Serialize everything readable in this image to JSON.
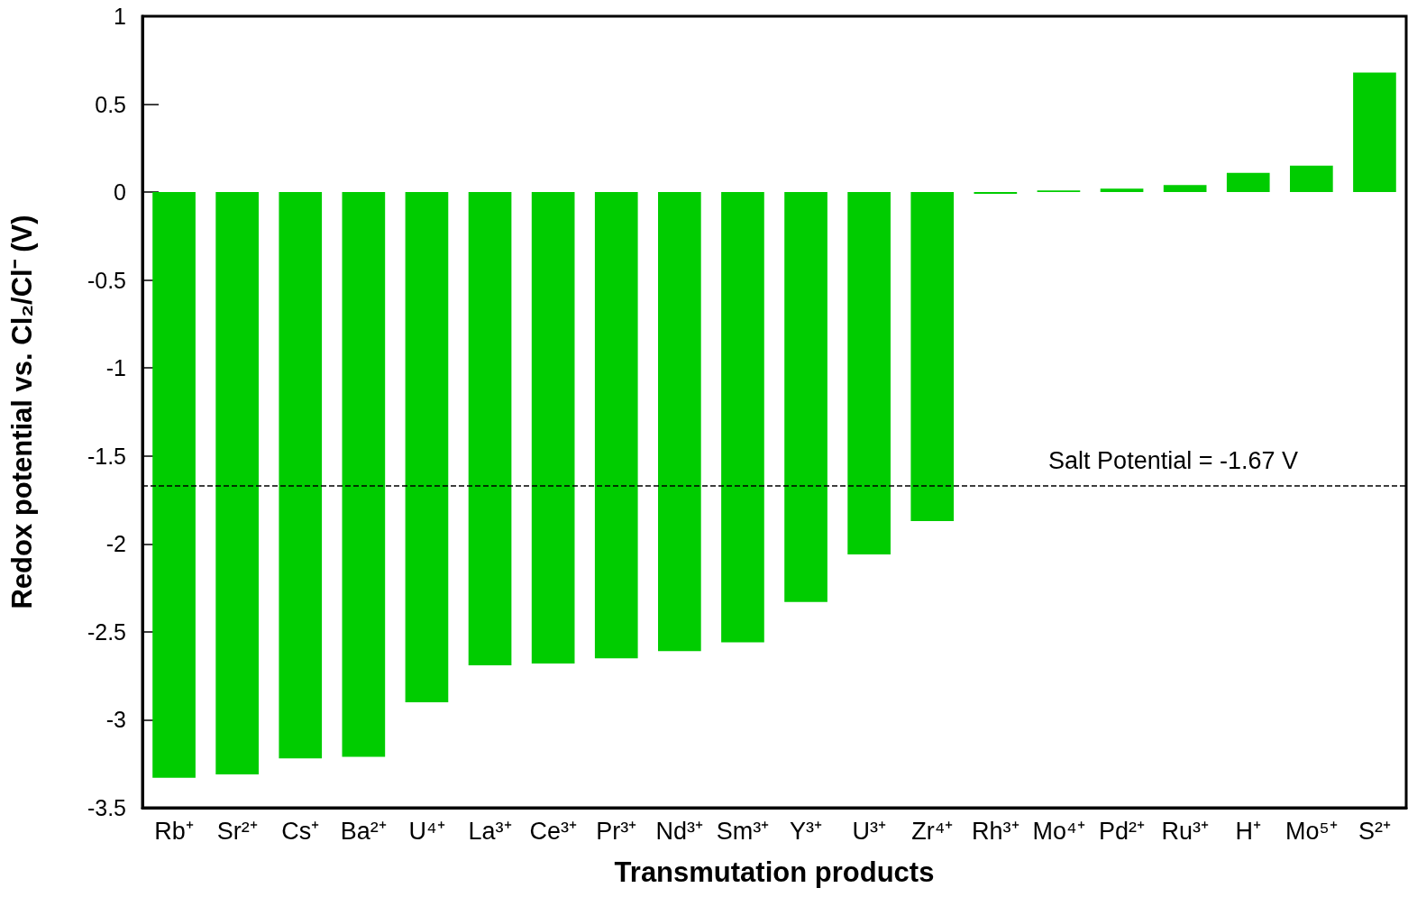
{
  "chart_data": {
    "type": "bar",
    "xlabel": "Transmutation products",
    "ylabel": "Redox potential vs. Cl₂/Cl⁻ (V)",
    "categories": [
      "Rb⁺",
      "Sr²⁺",
      "Cs⁺",
      "Ba²⁺",
      "U⁴⁺",
      "La³⁺",
      "Ce³⁺",
      "Pr³⁺",
      "Nd³⁺",
      "Sm³⁺",
      "Y³⁺",
      "U³⁺",
      "Zr⁴⁺",
      "Rh³⁺",
      "Mo⁴⁺",
      "Pd²⁺",
      "Ru³⁺",
      "H⁺",
      "Mo⁵⁺",
      "S²⁺"
    ],
    "values": [
      -3.33,
      -3.31,
      -3.22,
      -3.21,
      -2.9,
      -2.69,
      -2.68,
      -2.65,
      -2.61,
      -2.56,
      -2.33,
      -2.06,
      -1.87,
      -0.01,
      0.01,
      0.02,
      0.04,
      0.11,
      0.15,
      0.68
    ],
    "color": "#00cc00",
    "ylim": [
      -3.5,
      1
    ],
    "yticks": [
      -3.5,
      -3,
      -2.5,
      -2,
      -1.5,
      -1,
      -0.5,
      0,
      0.5,
      1
    ],
    "ref_lines": [
      {
        "axis": "y",
        "value": -1.67,
        "label": "Salt Potential = -1.67 V",
        "color": "#000000",
        "line_style": "dashed"
      }
    ],
    "grid": false
  }
}
